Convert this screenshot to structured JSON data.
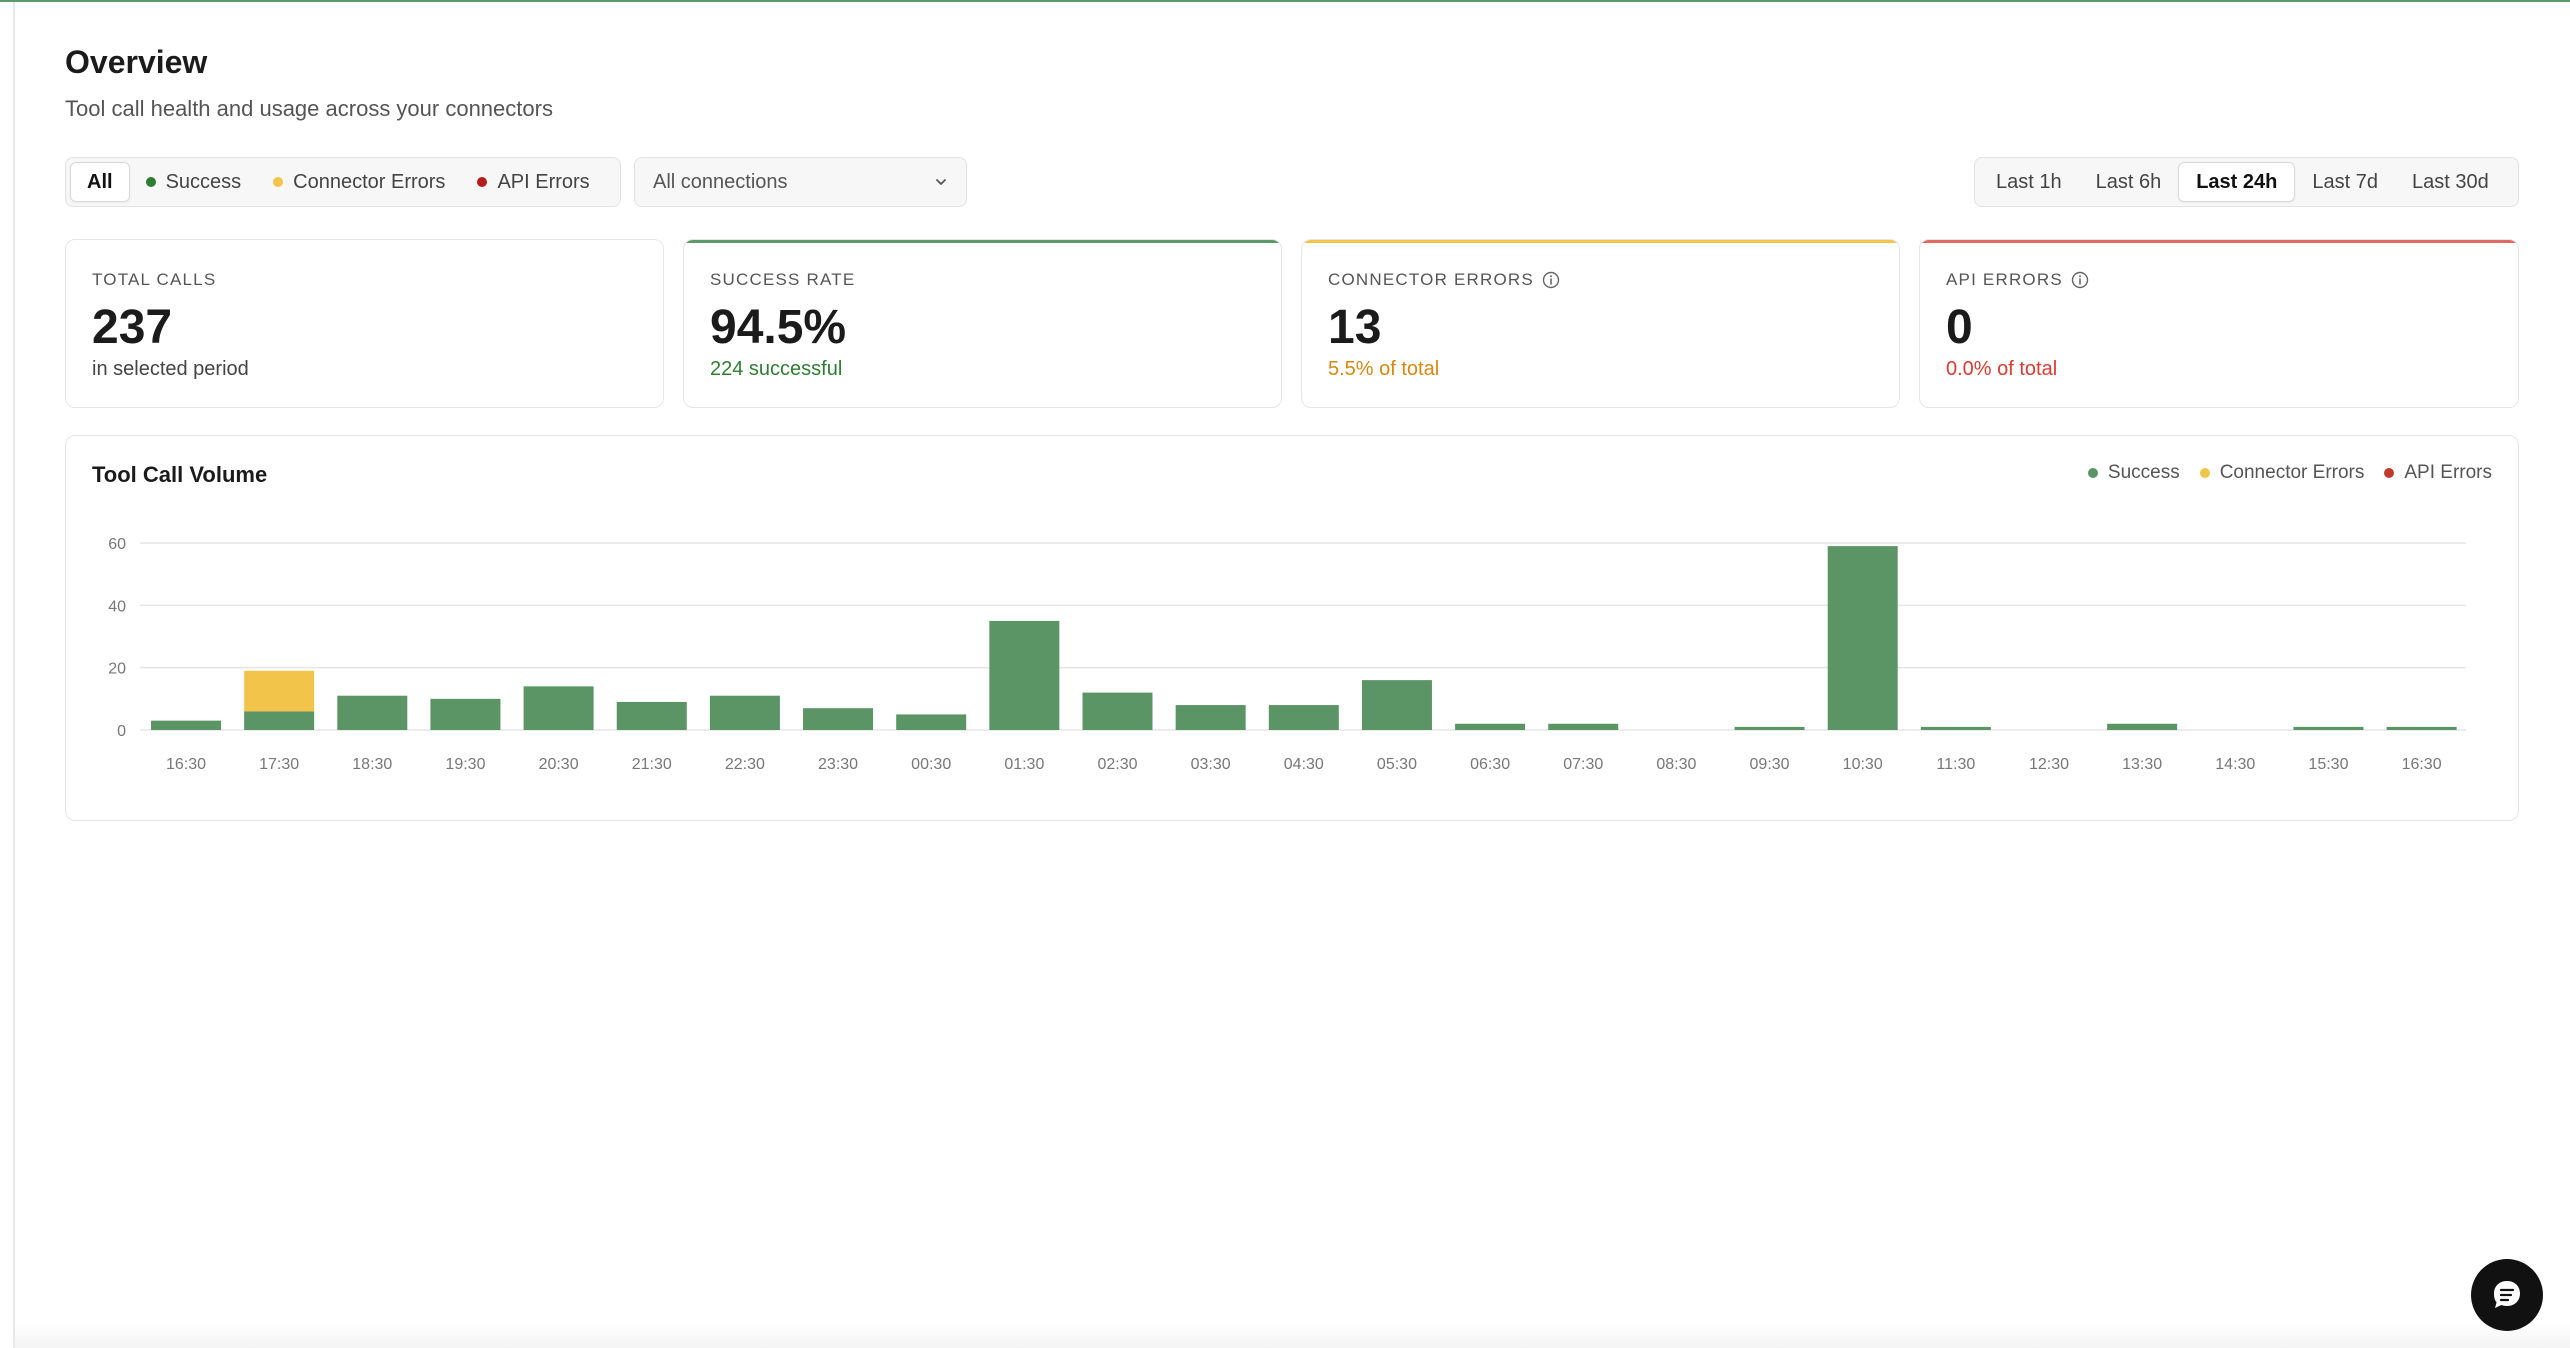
{
  "header": {
    "title": "Overview",
    "subtitle": "Tool call health and usage across your connectors"
  },
  "filters": {
    "status": [
      {
        "label": "All",
        "dot": null,
        "active": true
      },
      {
        "label": "Success",
        "dot": "#2e7d32",
        "active": false
      },
      {
        "label": "Connector Errors",
        "dot": "#f2c44a",
        "active": false
      },
      {
        "label": "API Errors",
        "dot": "#b71c1c",
        "active": false
      }
    ],
    "connection_select": {
      "value": "All connections"
    },
    "time_ranges": [
      {
        "label": "Last 1h",
        "active": false
      },
      {
        "label": "Last 6h",
        "active": false
      },
      {
        "label": "Last 24h",
        "active": true
      },
      {
        "label": "Last 7d",
        "active": false
      },
      {
        "label": "Last 30d",
        "active": false
      }
    ]
  },
  "stats": {
    "total": {
      "label": "TOTAL CALLS",
      "value": "237",
      "sub": "in selected period",
      "accent": "",
      "sub_color": "#444444"
    },
    "success": {
      "label": "SUCCESS RATE",
      "value": "94.5%",
      "sub": "224 successful",
      "accent": "#5c9a6a",
      "sub_color": "#2e7d32"
    },
    "connector": {
      "label": "CONNECTOR ERRORS",
      "value": "13",
      "sub": "5.5% of total",
      "accent": "#f2c44a",
      "sub_color": "#d68910"
    },
    "api": {
      "label": "API ERRORS",
      "value": "0",
      "sub": "0.0% of total",
      "accent": "#e06a63",
      "sub_color": "#d93b34"
    }
  },
  "chart": {
    "title": "Tool Call Volume",
    "legend": [
      {
        "label": "Success",
        "color": "#5b9465"
      },
      {
        "label": "Connector Errors",
        "color": "#f2c44a"
      },
      {
        "label": "API Errors",
        "color": "#c0392b"
      }
    ]
  },
  "chart_data": {
    "type": "bar",
    "stacked": true,
    "categories": [
      "16:30",
      "17:30",
      "18:30",
      "19:30",
      "20:30",
      "21:30",
      "22:30",
      "23:30",
      "00:30",
      "01:30",
      "02:30",
      "03:30",
      "04:30",
      "05:30",
      "06:30",
      "07:30",
      "08:30",
      "09:30",
      "10:30",
      "11:30",
      "12:30",
      "13:30",
      "14:30",
      "15:30",
      "16:30"
    ],
    "series": [
      {
        "name": "Success",
        "color": "#5b9465",
        "values": [
          3,
          6,
          11,
          10,
          14,
          9,
          11,
          7,
          5,
          35,
          12,
          8,
          8,
          16,
          2,
          2,
          0,
          1,
          59,
          1,
          0,
          2,
          0,
          1,
          1
        ]
      },
      {
        "name": "Connector Errors",
        "color": "#f2c44a",
        "values": [
          0,
          13,
          0,
          0,
          0,
          0,
          0,
          0,
          0,
          0,
          0,
          0,
          0,
          0,
          0,
          0,
          0,
          0,
          0,
          0,
          0,
          0,
          0,
          0,
          0
        ]
      },
      {
        "name": "API Errors",
        "color": "#c0392b",
        "values": [
          0,
          0,
          0,
          0,
          0,
          0,
          0,
          0,
          0,
          0,
          0,
          0,
          0,
          0,
          0,
          0,
          0,
          0,
          0,
          0,
          0,
          0,
          0,
          0,
          0
        ]
      }
    ],
    "yticks": [
      0,
      20,
      40,
      60
    ],
    "ylim": [
      0,
      60
    ],
    "grid": true,
    "legend": "top-right",
    "xlabel": "",
    "ylabel": ""
  }
}
